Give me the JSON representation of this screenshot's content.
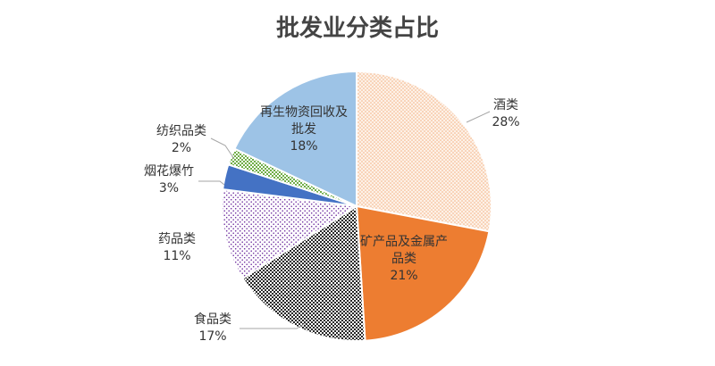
{
  "chart_data": {
    "type": "pie",
    "title": "批发业分类占比",
    "slices": [
      {
        "name": "酒类",
        "value": 28,
        "label": "28%",
        "color": "#f4b183",
        "pattern": "dots-orange"
      },
      {
        "name": "矿产品及金属产品类",
        "value": 21,
        "label": "21%",
        "color": "#ed7d31",
        "pattern": "solid"
      },
      {
        "name": "食品类",
        "value": 17,
        "label": "17%",
        "color": "#3a3a3a",
        "pattern": "checker-dark"
      },
      {
        "name": "药品类",
        "value": 11,
        "label": "11%",
        "color": "#7030a0",
        "pattern": "dots-purple"
      },
      {
        "name": "烟花爆竹",
        "value": 3,
        "label": "3%",
        "color": "#4472c4",
        "pattern": "solid"
      },
      {
        "name": "纺织品类",
        "value": 2,
        "label": "2%",
        "color": "#70ad47",
        "pattern": "checker-green"
      },
      {
        "name": "再生物资回收及批发",
        "value": 18,
        "label": "18%",
        "color": "#9dc3e6",
        "pattern": "solid"
      }
    ],
    "label_lines": {
      "酒类": [
        "酒类"
      ],
      "矿产品及金属产品类": [
        "矿产品及金属产",
        "品类"
      ],
      "食品类": [
        "食品类"
      ],
      "药品类": [
        "药品类"
      ],
      "烟花爆竹": [
        "烟花爆竹"
      ],
      "纺织品类": [
        "纺织品类"
      ],
      "再生物资回收及批发": [
        "再生物资回收及",
        "批发"
      ]
    },
    "start": "12 o'clock",
    "direction": "clockwise",
    "legend": "none"
  }
}
